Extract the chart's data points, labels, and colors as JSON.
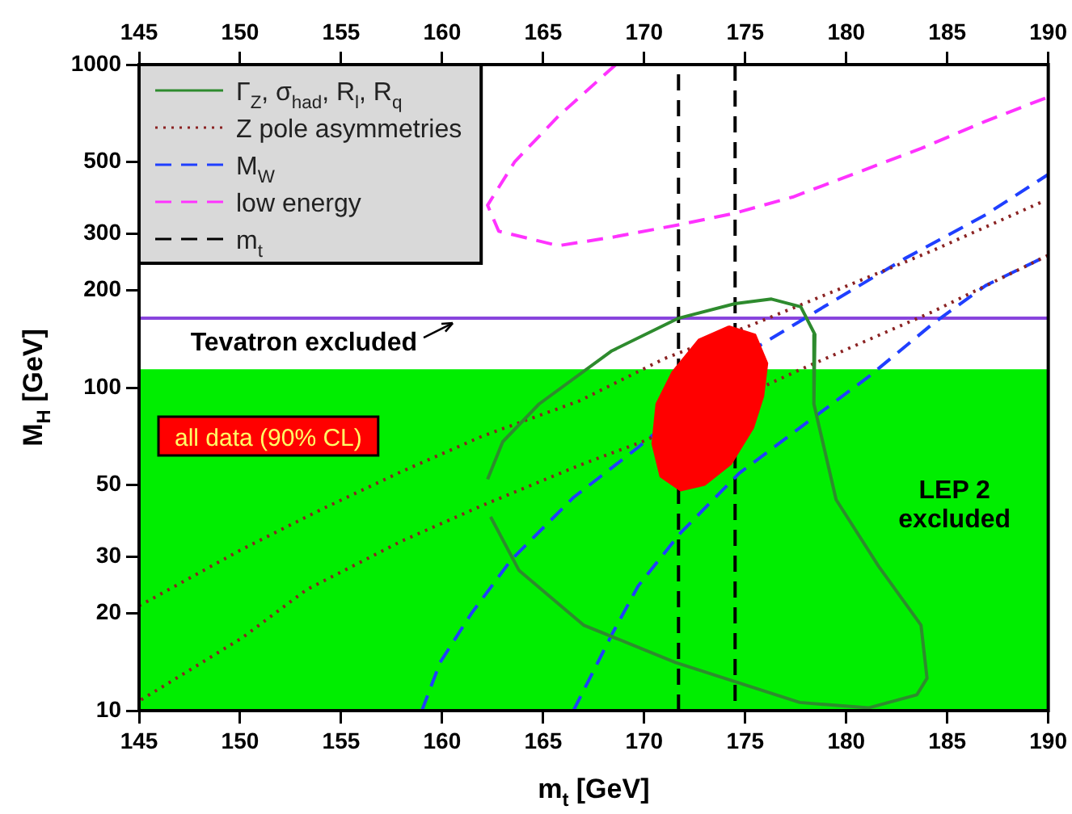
{
  "chart_data": {
    "type": "line",
    "xlabel": "m$_{t}$ [GeV]",
    "ylabel": "M$_{H}$ [GeV]",
    "log": "y",
    "xlim": [
      145,
      190
    ],
    "xticks": [
      145,
      150,
      155,
      160,
      165,
      170,
      175,
      180,
      185,
      190
    ],
    "x2lim": [
      145,
      190
    ],
    "x2ticks": [
      145,
      150,
      155,
      160,
      165,
      170,
      175,
      180,
      185,
      190
    ],
    "ylim": [
      10,
      1000
    ],
    "yticks": [
      10,
      20,
      30,
      50,
      100,
      200,
      300,
      500,
      1000
    ],
    "grid": false,
    "legend": "top left",
    "marker": "none",
    "bands": [
      {
        "axis": "y",
        "from": 10,
        "to": 114,
        "label": "LEP 2 excluded",
        "color": "#00ee00"
      }
    ],
    "ref_lines": [
      {
        "axis": "y",
        "value": 164,
        "color": "#8844dd",
        "label": "Tevatron excluded"
      }
    ],
    "series": [
      {
        "name": "Γ$_{Z}$, σ$_{had}$, R$_{l}$, R$_{q}$",
        "color": "#2e8b2e",
        "line_style": "solid",
        "x": [
          162.25,
          163.0,
          164.8,
          168.4,
          171.7,
          174.5,
          176.3,
          177.75,
          178.45,
          178.4,
          179.5,
          181.6,
          183.7,
          184.0,
          183.5,
          181.1,
          177.7,
          171.55,
          167.0,
          163.8,
          162.4
        ],
        "values": [
          52,
          68,
          89,
          130,
          164,
          182,
          188,
          178,
          146,
          89,
          45,
          28,
          18.4,
          12.6,
          11.2,
          10.2,
          10.6,
          14.1,
          18.4,
          27.2,
          39.8
        ]
      },
      {
        "name": "Z pole asymmetries",
        "color": "#8b2323",
        "line_style": "dotted",
        "x": [
          145,
          150.1,
          154.1,
          158.0,
          162.0,
          166.8,
          171.0,
          175.5,
          179.5,
          184.3,
          189.7
        ],
        "values": [
          21.1,
          31.6,
          42.2,
          55,
          70.8,
          91,
          123,
          158,
          200,
          266,
          376
        ]
      },
      {
        "color": "#8b2323",
        "line_style": "dotted",
        "x": [
          145.1,
          150.1,
          153.3,
          158.0,
          162.0,
          166.8,
          170.0,
          177.9,
          184.3,
          190
        ],
        "values": [
          10.8,
          16.8,
          23.7,
          33.5,
          43.2,
          57.5,
          68.4,
          115,
          172,
          257
        ]
      },
      {
        "name": "M$_{W}$",
        "color": "#1f3fff",
        "line_style": "dashed",
        "x": [
          159.0,
          159.9,
          161.45,
          163.4,
          166.5,
          169.7,
          175.8,
          178.9,
          182.9,
          186.9,
          190
        ],
        "values": [
          10,
          14.1,
          20,
          29.2,
          45.7,
          65.3,
          136,
          178,
          251,
          343,
          457
        ]
      },
      {
        "color": "#1f3fff",
        "line_style": "dashed",
        "x": [
          166.5,
          168.4,
          169.7,
          171.8,
          174.7,
          177.9,
          181.1,
          184.3,
          186.9,
          190
        ],
        "values": [
          10,
          17.2,
          24.3,
          35.5,
          54.3,
          76.7,
          108,
          158,
          207,
          257
        ]
      },
      {
        "name": "low energy",
        "color": "#ff33ff",
        "line_style": "dashed",
        "x": [
          168.6,
          165.75,
          163.6,
          162.25,
          162.8,
          165.75,
          168.4,
          171.8,
          174.5,
          177.35,
          180.3,
          183.7,
          186.9,
          190
        ],
        "values": [
          1000,
          692,
          501,
          367,
          305,
          275,
          292,
          320,
          347,
          389,
          457,
          550,
          668,
          794
        ]
      },
      {
        "name": "m$_{t}$",
        "color": "#000000",
        "line_style": "dashed",
        "x": [
          171.7,
          171.7,
          null,
          174.5,
          174.5
        ],
        "values": [
          10,
          1000,
          null,
          1000,
          10
        ]
      },
      {
        "name": "all data (90% CL)",
        "type": "area",
        "color": "#ff0000",
        "x": [
          174.2,
          175.5,
          176.1,
          175.9,
          175.4,
          174.3,
          173.0,
          171.8,
          170.8,
          170.4,
          170.6,
          171.4,
          172.7,
          174.2
        ],
        "values": [
          155,
          146,
          119,
          94,
          75,
          58,
          50,
          48,
          53,
          67,
          89,
          112,
          141,
          155
        ]
      }
    ]
  }
}
